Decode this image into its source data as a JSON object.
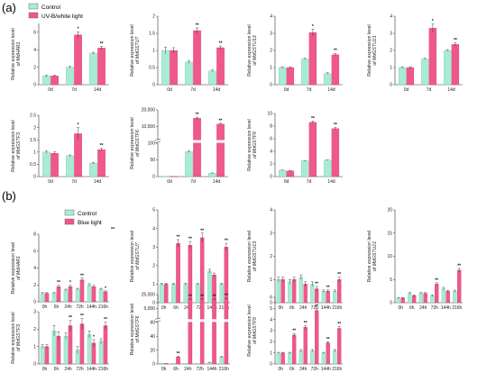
{
  "figure": {
    "label_a": "(a)",
    "label_b": "(b)",
    "legend_a": [
      {
        "label": "Control",
        "color": "#9fe6cf"
      },
      {
        "label": "UV-B/white light",
        "color": "#f05a8c"
      }
    ],
    "legend_b": [
      {
        "label": "Control",
        "color": "#9fe6cf"
      },
      {
        "label": "Blue light",
        "color": "#f05a8c"
      }
    ],
    "legend_b_extra_mark": "**"
  },
  "colors": {
    "control": "#a8ecd8",
    "treatment": "#f0588a",
    "axis": "#333333"
  },
  "chart_data": [
    {
      "type": "bar",
      "panel": "a",
      "ylabel_line1": "Relative expression level",
      "ylabel_line2": "of MdHAR1",
      "categories": [
        "0d",
        "7d",
        "14d"
      ],
      "ylim": [
        0,
        7
      ],
      "yticks": [
        0,
        2,
        4,
        6
      ],
      "series": [
        {
          "name": "Control",
          "values": [
            1.0,
            2.0,
            3.6
          ]
        },
        {
          "name": "UV-B/white light",
          "values": [
            1.0,
            5.7,
            4.2
          ]
        }
      ],
      "errors": [
        [
          0.08,
          0.1,
          0.1
        ],
        [
          0.08,
          0.35,
          0.2
        ]
      ],
      "sig": [
        [
          "",
          "",
          ""
        ],
        [
          "",
          "*",
          "**"
        ]
      ]
    },
    {
      "type": "bar",
      "panel": "a",
      "ylabel_line1": "Relative expression level",
      "ylabel_line2": "of MdGSTU7",
      "categories": [
        "0d",
        "7d",
        "14d"
      ],
      "ylim": [
        0,
        2.0
      ],
      "yticks": [
        0.0,
        0.5,
        1.0,
        1.5,
        2.0
      ],
      "series": [
        {
          "name": "Control",
          "values": [
            1.0,
            0.66,
            0.4
          ]
        },
        {
          "name": "UV-B/white light",
          "values": [
            1.0,
            1.58,
            1.08
          ]
        }
      ],
      "errors": [
        [
          0.1,
          0.04,
          0.03
        ],
        [
          0.08,
          0.08,
          0.05
        ]
      ],
      "sig": [
        [
          "",
          "",
          ""
        ],
        [
          "",
          "**",
          "**"
        ]
      ]
    },
    {
      "type": "bar",
      "panel": "a",
      "ylabel_line1": "Relative expression level",
      "ylabel_line2": "of MdGSTU13",
      "categories": [
        "0d",
        "7d",
        "14d"
      ],
      "ylim": [
        0,
        4
      ],
      "yticks": [
        0,
        1,
        2,
        3,
        4
      ],
      "series": [
        {
          "name": "Control",
          "values": [
            1.0,
            1.5,
            0.65
          ]
        },
        {
          "name": "UV-B/white light",
          "values": [
            1.0,
            3.05,
            1.75
          ]
        }
      ],
      "errors": [
        [
          0.05,
          0.05,
          0.05
        ],
        [
          0.05,
          0.2,
          0.08
        ]
      ],
      "sig": [
        [
          "",
          "",
          ""
        ],
        [
          "",
          "*",
          "**"
        ]
      ]
    },
    {
      "type": "bar",
      "panel": "a",
      "ylabel_line1": "Relative expression level",
      "ylabel_line2": "of MdGSTU21",
      "categories": [
        "0d",
        "7d",
        "14d"
      ],
      "ylim": [
        0,
        4
      ],
      "yticks": [
        0,
        1,
        2,
        3,
        4
      ],
      "series": [
        {
          "name": "Control",
          "values": [
            1.0,
            1.5,
            2.0
          ]
        },
        {
          "name": "UV-B/white light",
          "values": [
            1.0,
            3.3,
            2.35
          ]
        }
      ],
      "errors": [
        [
          0.05,
          0.05,
          0.05
        ],
        [
          0.05,
          0.25,
          0.1
        ]
      ],
      "sig": [
        [
          "",
          "",
          ""
        ],
        [
          "",
          "*",
          "**"
        ]
      ]
    },
    {
      "type": "bar",
      "panel": "a",
      "ylabel_line1": "Relative expression level",
      "ylabel_line2": "of MdGSTF3",
      "categories": [
        "0d",
        "7d",
        "14d"
      ],
      "ylim": [
        0,
        2.5
      ],
      "yticks": [
        0.0,
        0.5,
        1.0,
        1.5,
        2.0,
        2.5
      ],
      "series": [
        {
          "name": "Control",
          "values": [
            1.0,
            0.85,
            0.55
          ]
        },
        {
          "name": "UV-B/white light",
          "values": [
            0.95,
            1.75,
            1.1
          ]
        }
      ],
      "errors": [
        [
          0.06,
          0.03,
          0.03
        ],
        [
          0.06,
          0.25,
          0.05
        ]
      ],
      "sig": [
        [
          "",
          "",
          ""
        ],
        [
          "",
          "*",
          "**"
        ]
      ]
    },
    {
      "type": "bar",
      "panel": "a",
      "broken_axis": true,
      "ylabel_line1": "Relative expression level",
      "ylabel_line2": "of MdGSTF6",
      "categories": [
        "0d",
        "7d",
        "14d"
      ],
      "ylim": [
        0,
        20000
      ],
      "yticks": [
        0,
        50,
        100,
        10000,
        20000
      ],
      "yticklabels": [
        "0",
        "50",
        "100",
        "10,000",
        "20,000"
      ],
      "series": [
        {
          "name": "Control",
          "values": [
            1,
            75,
            10
          ]
        },
        {
          "name": "UV-B/white light",
          "values": [
            1,
            15000,
            11500
          ]
        }
      ],
      "errors": [
        [
          0,
          3,
          1
        ],
        [
          0,
          600,
          500
        ]
      ],
      "sig": [
        [
          "",
          "",
          ""
        ],
        [
          "",
          "**",
          "**"
        ]
      ]
    },
    {
      "type": "bar",
      "panel": "a",
      "ylabel_line1": "Relative expression level",
      "ylabel_line2": "of MdGSTF9",
      "categories": [
        "0d",
        "7d",
        "14d"
      ],
      "ylim": [
        0,
        10
      ],
      "yticks": [
        0,
        2,
        4,
        6,
        8,
        10
      ],
      "series": [
        {
          "name": "Control",
          "values": [
            1.0,
            2.5,
            2.6
          ]
        },
        {
          "name": "UV-B/white light",
          "values": [
            0.9,
            8.6,
            7.6
          ]
        }
      ],
      "errors": [
        [
          0.05,
          0.05,
          0.05
        ],
        [
          0.05,
          0.2,
          0.2
        ]
      ],
      "sig": [
        [
          "",
          "",
          ""
        ],
        [
          "",
          "**",
          "**"
        ]
      ]
    },
    {
      "type": "bar",
      "panel": "b",
      "ylabel_line1": "Relative expression level",
      "ylabel_line2": "of MdHAR1",
      "categories": [
        "0h",
        "6h",
        "24h",
        "72h",
        "144h",
        "216h"
      ],
      "ylim": [
        0,
        8
      ],
      "yticks": [
        0,
        2,
        4,
        6,
        8
      ],
      "series": [
        {
          "name": "Control",
          "values": [
            1.0,
            1.0,
            1.4,
            1.5,
            2.0,
            1.5
          ]
        },
        {
          "name": "Blue light",
          "values": [
            1.0,
            1.8,
            1.8,
            2.6,
            1.8,
            1.2
          ]
        }
      ],
      "errors": [
        [
          0.1,
          0.1,
          0.1,
          0.1,
          0.15,
          0.1
        ],
        [
          0.1,
          0.15,
          0.15,
          0.2,
          0.15,
          0.1
        ]
      ],
      "sig": [
        [
          "",
          "",
          "",
          "",
          "",
          ""
        ],
        [
          "",
          "**",
          "*",
          "**",
          "",
          "*"
        ]
      ]
    },
    {
      "type": "bar",
      "panel": "b",
      "ylabel_line1": "Relative expression level",
      "ylabel_line2": "of MdGSTU7",
      "categories": [
        "0h",
        "6h",
        "24h",
        "72h",
        "144h",
        "216h"
      ],
      "ylim": [
        0,
        5
      ],
      "yticks": [
        0,
        1,
        2,
        3,
        4,
        5
      ],
      "series": [
        {
          "name": "Control",
          "values": [
            1.0,
            1.0,
            1.0,
            1.0,
            1.7,
            1.0
          ]
        },
        {
          "name": "Blue light",
          "values": [
            1.0,
            3.2,
            3.1,
            3.5,
            1.5,
            3.0
          ]
        }
      ],
      "errors": [
        [
          0.05,
          0.05,
          0.05,
          0.05,
          0.1,
          0.05
        ],
        [
          0.05,
          0.2,
          0.2,
          0.25,
          0.1,
          0.2
        ]
      ],
      "sig": [
        [
          "",
          "",
          "",
          "",
          "",
          ""
        ],
        [
          "",
          "**",
          "**",
          "**",
          "",
          "**"
        ]
      ]
    },
    {
      "type": "bar",
      "panel": "b",
      "ylabel_line1": "Relative expression level",
      "ylabel_line2": "of MdGSTU13",
      "categories": [
        "0h",
        "6h",
        "24h",
        "72h",
        "144h",
        "216h"
      ],
      "ylim": [
        0,
        4
      ],
      "yticks": [
        0,
        1,
        2,
        3,
        4
      ],
      "series": [
        {
          "name": "Control",
          "values": [
            1.0,
            0.9,
            1.1,
            0.8,
            0.5,
            0.5
          ]
        },
        {
          "name": "Blue light",
          "values": [
            1.0,
            1.0,
            0.8,
            0.6,
            0.5,
            1.0
          ]
        }
      ],
      "errors": [
        [
          0.1,
          0.1,
          0.1,
          0.1,
          0.05,
          0.05
        ],
        [
          0.1,
          0.1,
          0.1,
          0.1,
          0.05,
          0.1
        ]
      ],
      "sig": [
        [
          "",
          "",
          "",
          "",
          "",
          ""
        ],
        [
          "",
          "",
          "",
          "**",
          "**",
          "**"
        ]
      ]
    },
    {
      "type": "bar",
      "panel": "b",
      "ylabel_line1": "Relative expression level",
      "ylabel_line2": "of MdGSTU21",
      "categories": [
        "0h",
        "6h",
        "24h",
        "72h",
        "144h",
        "216h"
      ],
      "ylim": [
        0,
        20
      ],
      "yticks": [
        0,
        5,
        10,
        15,
        20
      ],
      "series": [
        {
          "name": "Control",
          "values": [
            1.0,
            2.0,
            2.0,
            1.5,
            3.0,
            2.5
          ]
        },
        {
          "name": "Blue light",
          "values": [
            1.0,
            1.5,
            2.0,
            4.0,
            2.5,
            7.0
          ]
        }
      ],
      "errors": [
        [
          0.1,
          0.2,
          0.2,
          0.2,
          0.3,
          0.2
        ],
        [
          0.1,
          0.2,
          0.2,
          0.3,
          0.2,
          0.4
        ]
      ],
      "sig": [
        [
          "",
          "",
          "",
          "",
          "",
          ""
        ],
        [
          "",
          "",
          "",
          "**",
          "",
          "**"
        ]
      ]
    },
    {
      "type": "bar",
      "panel": "b",
      "ylabel_line1": "Relative expression level",
      "ylabel_line2": "of MdGSTF3",
      "categories": [
        "0h",
        "6h",
        "24h",
        "72h",
        "144h",
        "216h"
      ],
      "ylim": [
        0,
        3
      ],
      "yticks": [
        0,
        1,
        2,
        3
      ],
      "series": [
        {
          "name": "Control",
          "values": [
            1.0,
            1.9,
            1.6,
            0.8,
            1.7,
            1.3
          ]
        },
        {
          "name": "Blue light",
          "values": [
            1.0,
            1.6,
            2.2,
            2.3,
            1.2,
            2.2
          ]
        }
      ],
      "errors": [
        [
          0.1,
          0.3,
          0.2,
          0.2,
          0.2,
          0.15
        ],
        [
          0.1,
          0.25,
          0.3,
          0.3,
          0.2,
          0.2
        ]
      ],
      "sig": [
        [
          "",
          "",
          "",
          "",
          "",
          ""
        ],
        [
          "",
          "",
          "**",
          "**",
          "*",
          "**"
        ]
      ]
    },
    {
      "type": "bar",
      "panel": "b",
      "broken_axis": true,
      "ylabel_line1": "Relative expression level",
      "ylabel_line2": "of MdGSTF6",
      "categories": [
        "0h",
        "6h",
        "24h",
        "72h",
        "144h",
        "216h"
      ],
      "ylim": [
        0,
        25000
      ],
      "yticks": [
        0,
        20,
        40,
        60,
        5000,
        25000
      ],
      "yticklabels": [
        "0",
        "20",
        "40",
        "60",
        "5,000",
        "25,000"
      ],
      "series": [
        {
          "name": "Control",
          "values": [
            1,
            1,
            1,
            1,
            2,
            10
          ]
        },
        {
          "name": "Blue light",
          "values": [
            1,
            10,
            18000,
            18000,
            18000,
            19000
          ]
        }
      ],
      "errors": [
        [
          0,
          0,
          0,
          0,
          0.5,
          1
        ],
        [
          0,
          1,
          800,
          800,
          800,
          800
        ]
      ],
      "sig": [
        [
          "",
          "",
          "",
          "",
          "",
          ""
        ],
        [
          "",
          "**",
          "**",
          "**",
          "**",
          "**"
        ]
      ]
    },
    {
      "type": "bar",
      "panel": "b",
      "ylabel_line1": "Relative expression level",
      "ylabel_line2": "of MdGSTF9",
      "categories": [
        "0h",
        "6h",
        "24h",
        "72h",
        "144h",
        "216h"
      ],
      "ylim": [
        0,
        6
      ],
      "yticks": [
        0,
        1,
        2,
        3,
        4,
        5,
        6
      ],
      "series": [
        {
          "name": "Control",
          "values": [
            1.0,
            1.0,
            1.2,
            1.2,
            1.0,
            1.2
          ]
        },
        {
          "name": "Blue light",
          "values": [
            1.0,
            2.6,
            3.3,
            4.8,
            1.9,
            3.2
          ]
        }
      ],
      "errors": [
        [
          0.05,
          0.05,
          0.1,
          0.1,
          0.05,
          0.1
        ],
        [
          0.05,
          0.15,
          0.15,
          0.15,
          0.1,
          0.15
        ]
      ],
      "sig": [
        [
          "",
          "",
          "",
          "",
          "",
          ""
        ],
        [
          "",
          "**",
          "**",
          "**",
          "**",
          "**"
        ]
      ]
    }
  ]
}
